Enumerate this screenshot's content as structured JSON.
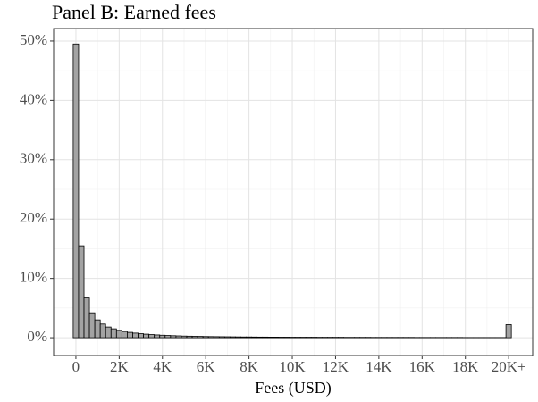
{
  "chart_data": {
    "type": "histogram",
    "title": "Panel B: Earned fees",
    "x_label": "Fees (USD)",
    "bins": [
      -125,
      125,
      375,
      625,
      875,
      1125,
      1375,
      1625,
      1875,
      2125,
      2375,
      2625,
      2875,
      3125,
      3375,
      3625,
      3875,
      4125,
      4375,
      4625,
      4875,
      5125,
      5375,
      5625,
      5875,
      6125,
      6375,
      6625,
      6875,
      7125,
      7375,
      7625,
      7875,
      8125,
      8375,
      8625,
      8875,
      9125,
      9375,
      9625,
      9875,
      10125,
      10375,
      10625,
      10875,
      11125,
      11375,
      11625,
      11875,
      12125,
      12375,
      12625,
      12875,
      13125,
      13375,
      13625,
      13875,
      14125,
      14375,
      14625,
      14875,
      15125,
      15375,
      15625,
      15875,
      16125,
      16375,
      16625,
      16875,
      17125,
      17375,
      17625,
      17875,
      18125,
      18375,
      18625,
      18875,
      19125,
      19375,
      19625,
      19875,
      20125
    ],
    "values": [
      49.5,
      15.5,
      6.7,
      4.2,
      3.0,
      2.3,
      1.8,
      1.5,
      1.25,
      1.05,
      0.9,
      0.78,
      0.68,
      0.6,
      0.53,
      0.47,
      0.42,
      0.38,
      0.34,
      0.31,
      0.28,
      0.26,
      0.24,
      0.22,
      0.2,
      0.19,
      0.18,
      0.17,
      0.16,
      0.15,
      0.14,
      0.13,
      0.13,
      0.12,
      0.11,
      0.11,
      0.1,
      0.1,
      0.09,
      0.09,
      0.08,
      0.08,
      0.08,
      0.08,
      0.08,
      0.07,
      0.07,
      0.07,
      0.07,
      0.07,
      0.06,
      0.06,
      0.06,
      0.06,
      0.06,
      0.05,
      0.05,
      0.05,
      0.05,
      0.05,
      0.05,
      0.05,
      0.05,
      0.04,
      0.04,
      0.04,
      0.04,
      0.04,
      0.04,
      0.04,
      0.04,
      0.04,
      0.03,
      0.03,
      0.03,
      0.03,
      0.03,
      0.03,
      0.03,
      0.03,
      2.2
    ],
    "color": "#a3a3a3",
    "xlim": [
      -1030,
      21110
    ],
    "ylim": [
      -3,
      52.1
    ],
    "xticks": [
      0,
      {
        "value": 2000,
        "label": "2K"
      },
      {
        "value": 4000,
        "label": "4K"
      },
      {
        "value": 6000,
        "label": "6K"
      },
      {
        "value": 8000,
        "label": "8K"
      },
      {
        "value": 10000,
        "label": "10K"
      },
      {
        "value": 12000,
        "label": "12K"
      },
      {
        "value": 14000,
        "label": "14K"
      },
      {
        "value": 16000,
        "label": "16K"
      },
      {
        "value": 18000,
        "label": "18K"
      },
      {
        "value": 20000,
        "label": "20K+"
      }
    ],
    "yticks": [
      {
        "value": 0,
        "label": "0%"
      },
      {
        "value": 10,
        "label": "10%"
      },
      {
        "value": 20,
        "label": "20%"
      },
      {
        "value": 30,
        "label": "30%"
      },
      {
        "value": 40,
        "label": "40%"
      },
      {
        "value": 50,
        "label": "50%"
      }
    ],
    "grid": true
  }
}
